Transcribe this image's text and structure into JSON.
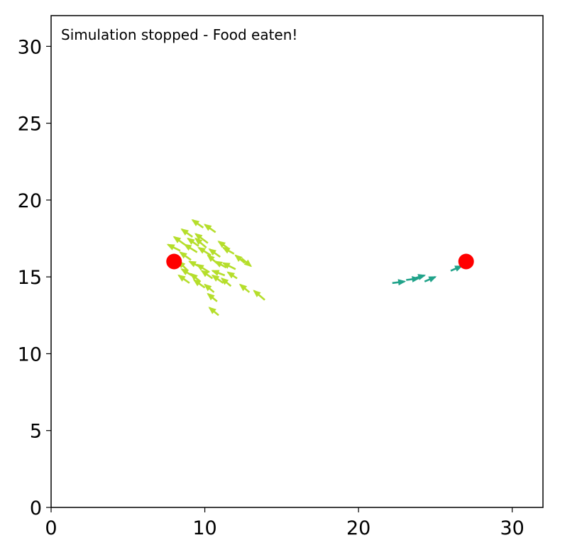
{
  "status_text": "Simulation stopped - Food eaten!",
  "colors": {
    "food": "#ff0000",
    "school_a": "#b5de2b",
    "school_b": "#21a38a",
    "axes": "#000000",
    "background": "#ffffff"
  },
  "chart_data": {
    "type": "scatter",
    "title": "",
    "xlabel": "",
    "ylabel": "",
    "xlim": [
      0,
      32
    ],
    "ylim": [
      0,
      32
    ],
    "grid": false,
    "xticks": [
      0,
      10,
      20,
      30
    ],
    "yticks": [
      0,
      5,
      10,
      15,
      20,
      25,
      30
    ],
    "food": [
      {
        "x": 8,
        "y": 16
      },
      {
        "x": 27,
        "y": 16
      }
    ],
    "agents": [
      {
        "group": "school_a",
        "points": [
          [
            9.2,
            17.6,
            -0.7,
            0.5
          ],
          [
            10.2,
            17.2,
            -0.8,
            0.6
          ],
          [
            11.0,
            16.3,
            -0.7,
            0.5
          ],
          [
            12.4,
            16.2,
            0.6,
            -0.5
          ],
          [
            9.8,
            15.6,
            -0.8,
            0.4
          ],
          [
            10.9,
            15.8,
            -0.7,
            0.6
          ],
          [
            9.5,
            16.6,
            -0.8,
            0.5
          ],
          [
            10.5,
            14.9,
            -0.7,
            0.5
          ],
          [
            11.3,
            15.1,
            -0.8,
            0.3
          ],
          [
            8.9,
            15.4,
            -0.6,
            0.6
          ],
          [
            10.0,
            14.3,
            -0.7,
            0.5
          ],
          [
            11.7,
            14.4,
            -0.6,
            0.5
          ],
          [
            10.8,
            13.4,
            -0.6,
            0.5
          ],
          [
            12.9,
            14.0,
            -0.6,
            0.5
          ],
          [
            13.9,
            13.5,
            -0.7,
            0.6
          ],
          [
            9.6,
            17.0,
            -0.7,
            0.5
          ],
          [
            10.4,
            16.4,
            -0.8,
            0.5
          ],
          [
            11.6,
            16.8,
            -0.7,
            0.5
          ],
          [
            12.0,
            15.5,
            -0.8,
            0.4
          ],
          [
            9.1,
            16.1,
            -0.7,
            0.5
          ],
          [
            10.3,
            15.3,
            -0.8,
            0.5
          ],
          [
            11.2,
            14.6,
            -0.7,
            0.5
          ],
          [
            9.7,
            14.7,
            -0.6,
            0.5
          ],
          [
            10.9,
            12.5,
            -0.6,
            0.5
          ],
          [
            8.7,
            17.1,
            -0.7,
            0.5
          ],
          [
            10.7,
            17.9,
            -0.7,
            0.5
          ],
          [
            9.9,
            18.2,
            -0.7,
            0.5
          ],
          [
            12.6,
            15.9,
            -0.6,
            0.5
          ],
          [
            11.9,
            16.5,
            -0.7,
            0.4
          ],
          [
            9.3,
            15.0,
            -0.8,
            0.5
          ],
          [
            10.1,
            16.9,
            -0.7,
            0.6
          ],
          [
            11.4,
            15.6,
            -0.7,
            0.4
          ],
          [
            8.4,
            16.7,
            -0.8,
            0.4
          ],
          [
            10.6,
            14.0,
            -0.6,
            0.5
          ],
          [
            12.1,
            14.9,
            -0.6,
            0.4
          ],
          [
            9.0,
            14.6,
            -0.7,
            0.5
          ]
        ]
      },
      {
        "group": "school_b",
        "points": [
          [
            22.2,
            14.6,
            0.8,
            0.1
          ],
          [
            23.1,
            14.8,
            0.8,
            0.1
          ],
          [
            23.6,
            14.9,
            0.7,
            0.2
          ],
          [
            24.3,
            14.7,
            0.7,
            0.3
          ],
          [
            26.0,
            15.4,
            0.7,
            0.3
          ]
        ]
      }
    ]
  }
}
